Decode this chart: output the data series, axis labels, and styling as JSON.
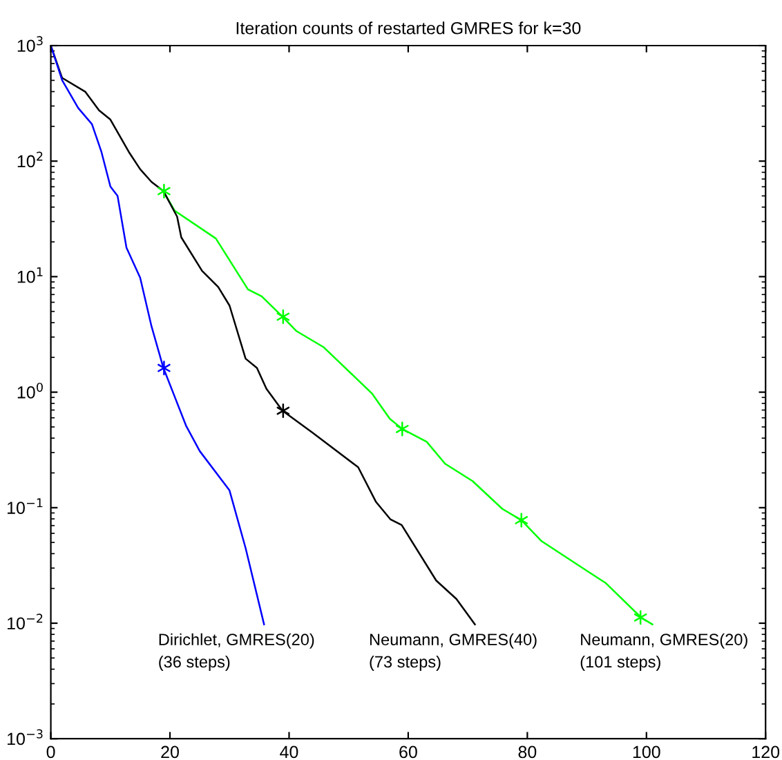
{
  "chart_data": {
    "type": "line",
    "title": "Iteration counts of restarted GMRES for k=30",
    "log": "y",
    "grid": false,
    "legend": false,
    "xlim": [
      0,
      120
    ],
    "xticks": [
      0,
      20,
      40,
      60,
      80,
      100,
      120
    ],
    "ylim": [
      0.001,
      1000
    ],
    "yticks": [
      {
        "value": 0.001,
        "label": "10$^{−3}$"
      },
      {
        "value": 0.01,
        "label": "10$^{−2}$"
      },
      {
        "value": 0.1,
        "label": "10$^{−1}$"
      },
      {
        "value": 1,
        "label": "10$^{0}$"
      },
      {
        "value": 10,
        "label": "10$^{1}$"
      },
      {
        "value": 100,
        "label": "10$^{2}$"
      },
      {
        "value": 1000,
        "label": "10$^{3}$"
      }
    ],
    "series": [
      {
        "color": "#0000ff",
        "marker": "none",
        "x": [
          0,
          1.9,
          4.6,
          6.9,
          8.5,
          10,
          11.2,
          12.7,
          15,
          16.9,
          18.9,
          22.7,
          25,
          30,
          32.7,
          35.8
        ],
        "values": [
          1000,
          501,
          288,
          209,
          120,
          60.3,
          50.1,
          17.8,
          9.77,
          3.72,
          1.62,
          0.513,
          0.309,
          0.141,
          0.0447,
          0.00977
        ]
      },
      {
        "color": "#000000",
        "marker": "none",
        "x": [
          0,
          1.9,
          5.8,
          8.1,
          10,
          13.1,
          15,
          16.9,
          18.9,
          21.2,
          21.9,
          25.4,
          28.1,
          30,
          32.7,
          34.6,
          36.2,
          38.9,
          43.9,
          51.6,
          54.6,
          57,
          58.9,
          64.7,
          68.1,
          71.2
        ],
        "values": [
          1000,
          525,
          398,
          275,
          229,
          120,
          85.1,
          66.1,
          55,
          33.1,
          21.9,
          11.2,
          8.13,
          5.62,
          1.95,
          1.62,
          1.07,
          0.69,
          0.447,
          0.224,
          0.112,
          0.0794,
          0.0708,
          0.0234,
          0.0162,
          0.00977
        ]
      },
      {
        "color": "#00ff00",
        "marker": "none",
        "x": [
          18.9,
          20.8,
          27.7,
          33.1,
          35.4,
          38.9,
          41.2,
          45.8,
          53.9,
          56.9,
          59,
          63.1,
          66.2,
          70.8,
          75.8,
          79,
          82.4,
          90.1,
          93.1,
          99.1,
          101
        ],
        "values": [
          55,
          37.2,
          21.4,
          7.76,
          6.76,
          4.5,
          3.39,
          2.45,
          0.977,
          0.589,
          0.48,
          0.372,
          0.24,
          0.17,
          0.0977,
          0.078,
          0.0513,
          0.0282,
          0.0224,
          0.0112,
          0.00977
        ]
      },
      {
        "type": "scatter",
        "color": "#0000ff",
        "marker": "cross",
        "x": [
          19
        ],
        "values": [
          1.62
        ]
      },
      {
        "type": "scatter",
        "color": "#000000",
        "marker": "cross",
        "x": [
          39
        ],
        "values": [
          0.69
        ]
      },
      {
        "type": "scatter",
        "color": "#00ff00",
        "marker": "cross",
        "x": [
          19,
          39,
          59,
          79,
          99
        ],
        "values": [
          55,
          4.5,
          0.48,
          0.078,
          0.0112
        ]
      }
    ],
    "annotations": [
      "Dirichlet, GMRES(20)\n(36 steps)",
      "Neumann, GMRES(40)\n(73 steps)",
      "Neumann, GMRES(20)\n(101 steps)"
    ]
  }
}
